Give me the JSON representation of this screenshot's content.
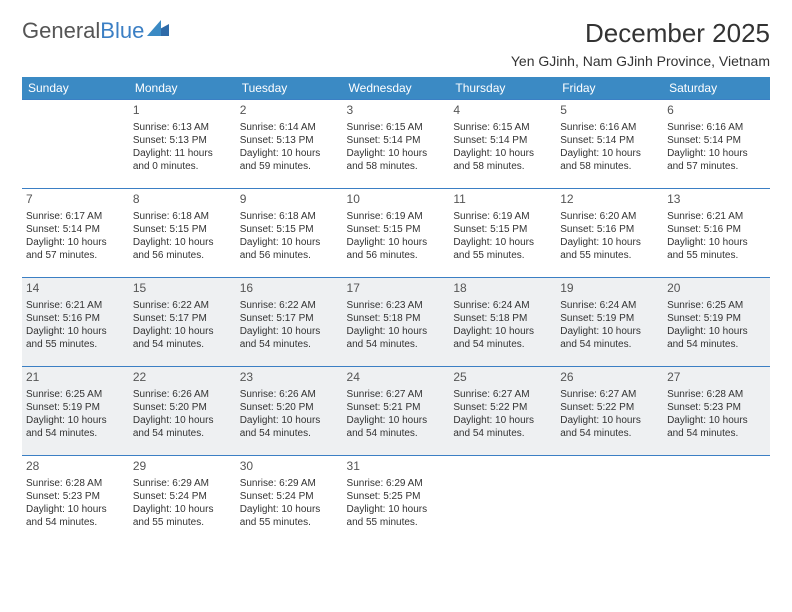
{
  "brand": {
    "part1": "General",
    "part2": "Blue"
  },
  "title": "December 2025",
  "location": "Yen GJinh, Nam GJinh Province, Vietnam",
  "colors": {
    "header_bg": "#3b8ac4",
    "header_text": "#ffffff",
    "border": "#3b7fc4",
    "shade_bg": "#eef0f2",
    "text": "#333333"
  },
  "weekdays": [
    "Sunday",
    "Monday",
    "Tuesday",
    "Wednesday",
    "Thursday",
    "Friday",
    "Saturday"
  ],
  "weeks": [
    [
      {
        "n": "",
        "sr": "",
        "ss": "",
        "dl1": "",
        "dl2": ""
      },
      {
        "n": "1",
        "sr": "Sunrise: 6:13 AM",
        "ss": "Sunset: 5:13 PM",
        "dl1": "Daylight: 11 hours",
        "dl2": "and 0 minutes."
      },
      {
        "n": "2",
        "sr": "Sunrise: 6:14 AM",
        "ss": "Sunset: 5:13 PM",
        "dl1": "Daylight: 10 hours",
        "dl2": "and 59 minutes."
      },
      {
        "n": "3",
        "sr": "Sunrise: 6:15 AM",
        "ss": "Sunset: 5:14 PM",
        "dl1": "Daylight: 10 hours",
        "dl2": "and 58 minutes."
      },
      {
        "n": "4",
        "sr": "Sunrise: 6:15 AM",
        "ss": "Sunset: 5:14 PM",
        "dl1": "Daylight: 10 hours",
        "dl2": "and 58 minutes."
      },
      {
        "n": "5",
        "sr": "Sunrise: 6:16 AM",
        "ss": "Sunset: 5:14 PM",
        "dl1": "Daylight: 10 hours",
        "dl2": "and 58 minutes."
      },
      {
        "n": "6",
        "sr": "Sunrise: 6:16 AM",
        "ss": "Sunset: 5:14 PM",
        "dl1": "Daylight: 10 hours",
        "dl2": "and 57 minutes."
      }
    ],
    [
      {
        "n": "7",
        "sr": "Sunrise: 6:17 AM",
        "ss": "Sunset: 5:14 PM",
        "dl1": "Daylight: 10 hours",
        "dl2": "and 57 minutes."
      },
      {
        "n": "8",
        "sr": "Sunrise: 6:18 AM",
        "ss": "Sunset: 5:15 PM",
        "dl1": "Daylight: 10 hours",
        "dl2": "and 56 minutes."
      },
      {
        "n": "9",
        "sr": "Sunrise: 6:18 AM",
        "ss": "Sunset: 5:15 PM",
        "dl1": "Daylight: 10 hours",
        "dl2": "and 56 minutes."
      },
      {
        "n": "10",
        "sr": "Sunrise: 6:19 AM",
        "ss": "Sunset: 5:15 PM",
        "dl1": "Daylight: 10 hours",
        "dl2": "and 56 minutes."
      },
      {
        "n": "11",
        "sr": "Sunrise: 6:19 AM",
        "ss": "Sunset: 5:15 PM",
        "dl1": "Daylight: 10 hours",
        "dl2": "and 55 minutes."
      },
      {
        "n": "12",
        "sr": "Sunrise: 6:20 AM",
        "ss": "Sunset: 5:16 PM",
        "dl1": "Daylight: 10 hours",
        "dl2": "and 55 minutes."
      },
      {
        "n": "13",
        "sr": "Sunrise: 6:21 AM",
        "ss": "Sunset: 5:16 PM",
        "dl1": "Daylight: 10 hours",
        "dl2": "and 55 minutes."
      }
    ],
    [
      {
        "n": "14",
        "sr": "Sunrise: 6:21 AM",
        "ss": "Sunset: 5:16 PM",
        "dl1": "Daylight: 10 hours",
        "dl2": "and 55 minutes.",
        "shade": true
      },
      {
        "n": "15",
        "sr": "Sunrise: 6:22 AM",
        "ss": "Sunset: 5:17 PM",
        "dl1": "Daylight: 10 hours",
        "dl2": "and 54 minutes.",
        "shade": true
      },
      {
        "n": "16",
        "sr": "Sunrise: 6:22 AM",
        "ss": "Sunset: 5:17 PM",
        "dl1": "Daylight: 10 hours",
        "dl2": "and 54 minutes.",
        "shade": true
      },
      {
        "n": "17",
        "sr": "Sunrise: 6:23 AM",
        "ss": "Sunset: 5:18 PM",
        "dl1": "Daylight: 10 hours",
        "dl2": "and 54 minutes.",
        "shade": true
      },
      {
        "n": "18",
        "sr": "Sunrise: 6:24 AM",
        "ss": "Sunset: 5:18 PM",
        "dl1": "Daylight: 10 hours",
        "dl2": "and 54 minutes.",
        "shade": true
      },
      {
        "n": "19",
        "sr": "Sunrise: 6:24 AM",
        "ss": "Sunset: 5:19 PM",
        "dl1": "Daylight: 10 hours",
        "dl2": "and 54 minutes.",
        "shade": true
      },
      {
        "n": "20",
        "sr": "Sunrise: 6:25 AM",
        "ss": "Sunset: 5:19 PM",
        "dl1": "Daylight: 10 hours",
        "dl2": "and 54 minutes.",
        "shade": true
      }
    ],
    [
      {
        "n": "21",
        "sr": "Sunrise: 6:25 AM",
        "ss": "Sunset: 5:19 PM",
        "dl1": "Daylight: 10 hours",
        "dl2": "and 54 minutes.",
        "shade": true
      },
      {
        "n": "22",
        "sr": "Sunrise: 6:26 AM",
        "ss": "Sunset: 5:20 PM",
        "dl1": "Daylight: 10 hours",
        "dl2": "and 54 minutes.",
        "shade": true
      },
      {
        "n": "23",
        "sr": "Sunrise: 6:26 AM",
        "ss": "Sunset: 5:20 PM",
        "dl1": "Daylight: 10 hours",
        "dl2": "and 54 minutes.",
        "shade": true
      },
      {
        "n": "24",
        "sr": "Sunrise: 6:27 AM",
        "ss": "Sunset: 5:21 PM",
        "dl1": "Daylight: 10 hours",
        "dl2": "and 54 minutes.",
        "shade": true
      },
      {
        "n": "25",
        "sr": "Sunrise: 6:27 AM",
        "ss": "Sunset: 5:22 PM",
        "dl1": "Daylight: 10 hours",
        "dl2": "and 54 minutes.",
        "shade": true
      },
      {
        "n": "26",
        "sr": "Sunrise: 6:27 AM",
        "ss": "Sunset: 5:22 PM",
        "dl1": "Daylight: 10 hours",
        "dl2": "and 54 minutes.",
        "shade": true
      },
      {
        "n": "27",
        "sr": "Sunrise: 6:28 AM",
        "ss": "Sunset: 5:23 PM",
        "dl1": "Daylight: 10 hours",
        "dl2": "and 54 minutes.",
        "shade": true
      }
    ],
    [
      {
        "n": "28",
        "sr": "Sunrise: 6:28 AM",
        "ss": "Sunset: 5:23 PM",
        "dl1": "Daylight: 10 hours",
        "dl2": "and 54 minutes."
      },
      {
        "n": "29",
        "sr": "Sunrise: 6:29 AM",
        "ss": "Sunset: 5:24 PM",
        "dl1": "Daylight: 10 hours",
        "dl2": "and 55 minutes."
      },
      {
        "n": "30",
        "sr": "Sunrise: 6:29 AM",
        "ss": "Sunset: 5:24 PM",
        "dl1": "Daylight: 10 hours",
        "dl2": "and 55 minutes."
      },
      {
        "n": "31",
        "sr": "Sunrise: 6:29 AM",
        "ss": "Sunset: 5:25 PM",
        "dl1": "Daylight: 10 hours",
        "dl2": "and 55 minutes."
      },
      {
        "n": "",
        "sr": "",
        "ss": "",
        "dl1": "",
        "dl2": ""
      },
      {
        "n": "",
        "sr": "",
        "ss": "",
        "dl1": "",
        "dl2": ""
      },
      {
        "n": "",
        "sr": "",
        "ss": "",
        "dl1": "",
        "dl2": ""
      }
    ]
  ]
}
